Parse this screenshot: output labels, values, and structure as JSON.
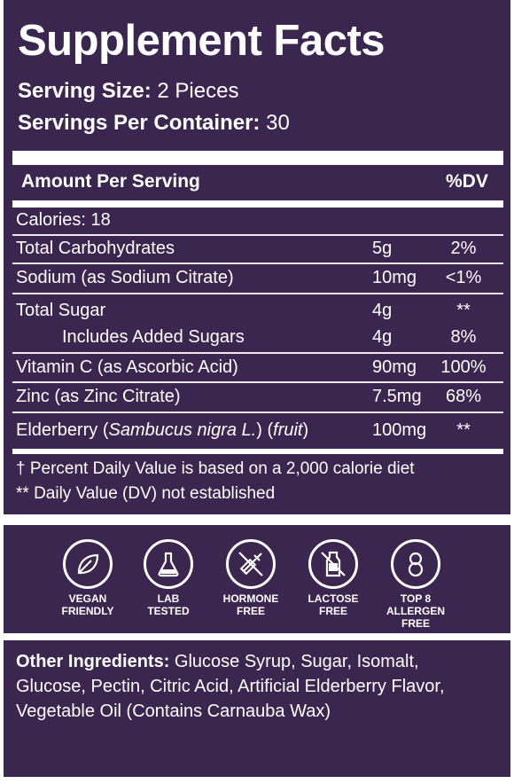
{
  "header": {
    "title": "Supplement Facts",
    "serving_size_label": "Serving Size:",
    "serving_size_value": "2 Pieces",
    "servings_label": "Servings Per Container:",
    "servings_value": "30"
  },
  "table": {
    "amount_header": "Amount Per Serving",
    "dv_header": "%DV",
    "calories": "Calories: 18",
    "rows": [
      {
        "label": "Total Carbohydrates",
        "amount": "5g",
        "dv": "2%"
      },
      {
        "label": "Sodium (as Sodium Citrate)",
        "amount": "10mg",
        "dv": "<1%"
      },
      {
        "label": "Total Sugar",
        "amount": "4g",
        "dv": "**"
      },
      {
        "label": "Includes Added Sugars",
        "amount": "4g",
        "dv": "8%"
      },
      {
        "label": "Vitamin C (as Ascorbic Acid)",
        "amount": "90mg",
        "dv": "100%"
      },
      {
        "label": "Zinc (as Zinc Citrate)",
        "amount": "7.5mg",
        "dv": "68%"
      },
      {
        "label_pre": "Elderberry (",
        "label_italic": "Sambucus nigra L.",
        "label_mid": ") (",
        "label_italic2": "fruit",
        "label_post": ")",
        "amount": "100mg",
        "dv": "**"
      }
    ],
    "footnote1": "† Percent Daily Value is based on a 2,000 calorie diet",
    "footnote2": "** Daily Value (DV) not established"
  },
  "badges": [
    {
      "icon": "leaf-icon",
      "line1": "VEGAN",
      "line2": "FRIENDLY",
      "line3": ""
    },
    {
      "icon": "flask-icon",
      "line1": "LAB",
      "line2": "TESTED",
      "line3": ""
    },
    {
      "icon": "no-syringe-icon",
      "line1": "HORMONE",
      "line2": "FREE",
      "line3": ""
    },
    {
      "icon": "no-milk-icon",
      "line1": "LACTOSE",
      "line2": "FREE",
      "line3": ""
    },
    {
      "icon": "number-8-icon",
      "line1": "TOP 8",
      "line2": "ALLERGEN",
      "line3": "FREE"
    }
  ],
  "ingredients": {
    "label": "Other Ingredients:",
    "text": " Glucose Syrup, Sugar, Isomalt, Glucose, Pectin, Citric Acid, Artificial Elderberry Flavor, Vegetable Oil (Contains Carnauba Wax)"
  },
  "colors": {
    "panel": "#3b2650",
    "text": "#ffffff"
  }
}
